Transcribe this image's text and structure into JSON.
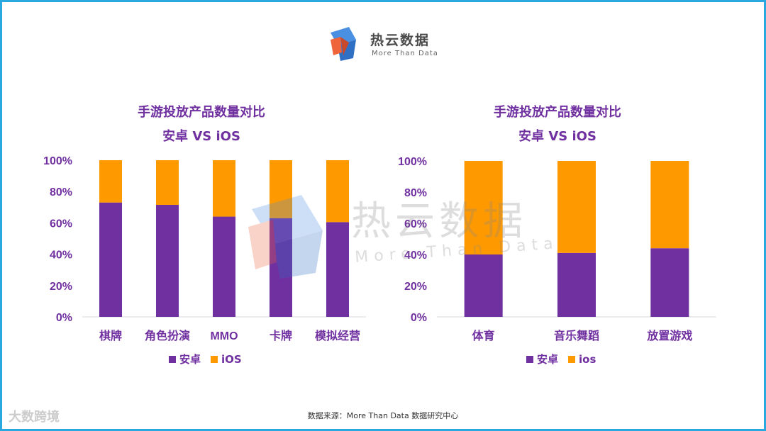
{
  "brand": {
    "name": "热云数据",
    "tagline": "More Than Data"
  },
  "colors": {
    "android": "#7030a0",
    "ios": "#ff9900",
    "border": "#29a9e0",
    "title": "#7030a0"
  },
  "chart_data": [
    {
      "type": "bar",
      "stacked": true,
      "title_line1": "手游投放产品数量对比",
      "title_line2": "安卓 VS iOS",
      "categories": [
        "棋牌",
        "角色扮演",
        "MMO",
        "卡牌",
        "模拟经营"
      ],
      "series": [
        {
          "name": "安卓",
          "values": [
            73,
            71.5,
            64,
            63,
            60.5
          ]
        },
        {
          "name": "iOS",
          "values": [
            27,
            28.5,
            36,
            37,
            39.5
          ]
        }
      ],
      "y_ticks": [
        "0%",
        "20%",
        "40%",
        "60%",
        "80%",
        "100%"
      ],
      "ylim": [
        0,
        100
      ],
      "legend": [
        "安卓",
        "iOS"
      ],
      "legend_position": "bottom"
    },
    {
      "type": "bar",
      "stacked": true,
      "title_line1": "手游投放产品数量对比",
      "title_line2": "安卓 VS iOS",
      "categories": [
        "体育",
        "音乐舞蹈",
        "放置游戏"
      ],
      "series": [
        {
          "name": "安卓",
          "values": [
            40,
            41,
            44
          ]
        },
        {
          "name": "ios",
          "values": [
            60,
            59,
            56
          ]
        }
      ],
      "y_ticks": [
        "0%",
        "20%",
        "40%",
        "60%",
        "80%",
        "100%"
      ],
      "ylim": [
        0,
        100
      ],
      "legend": [
        "安卓",
        "ios"
      ],
      "legend_position": "bottom"
    }
  ],
  "footer": {
    "source": "数据来源：More Than Data 数据研究中心",
    "corner_mark": "大数跨境"
  },
  "watermark": {
    "text": "热云数据",
    "sub": "More Than Data"
  }
}
